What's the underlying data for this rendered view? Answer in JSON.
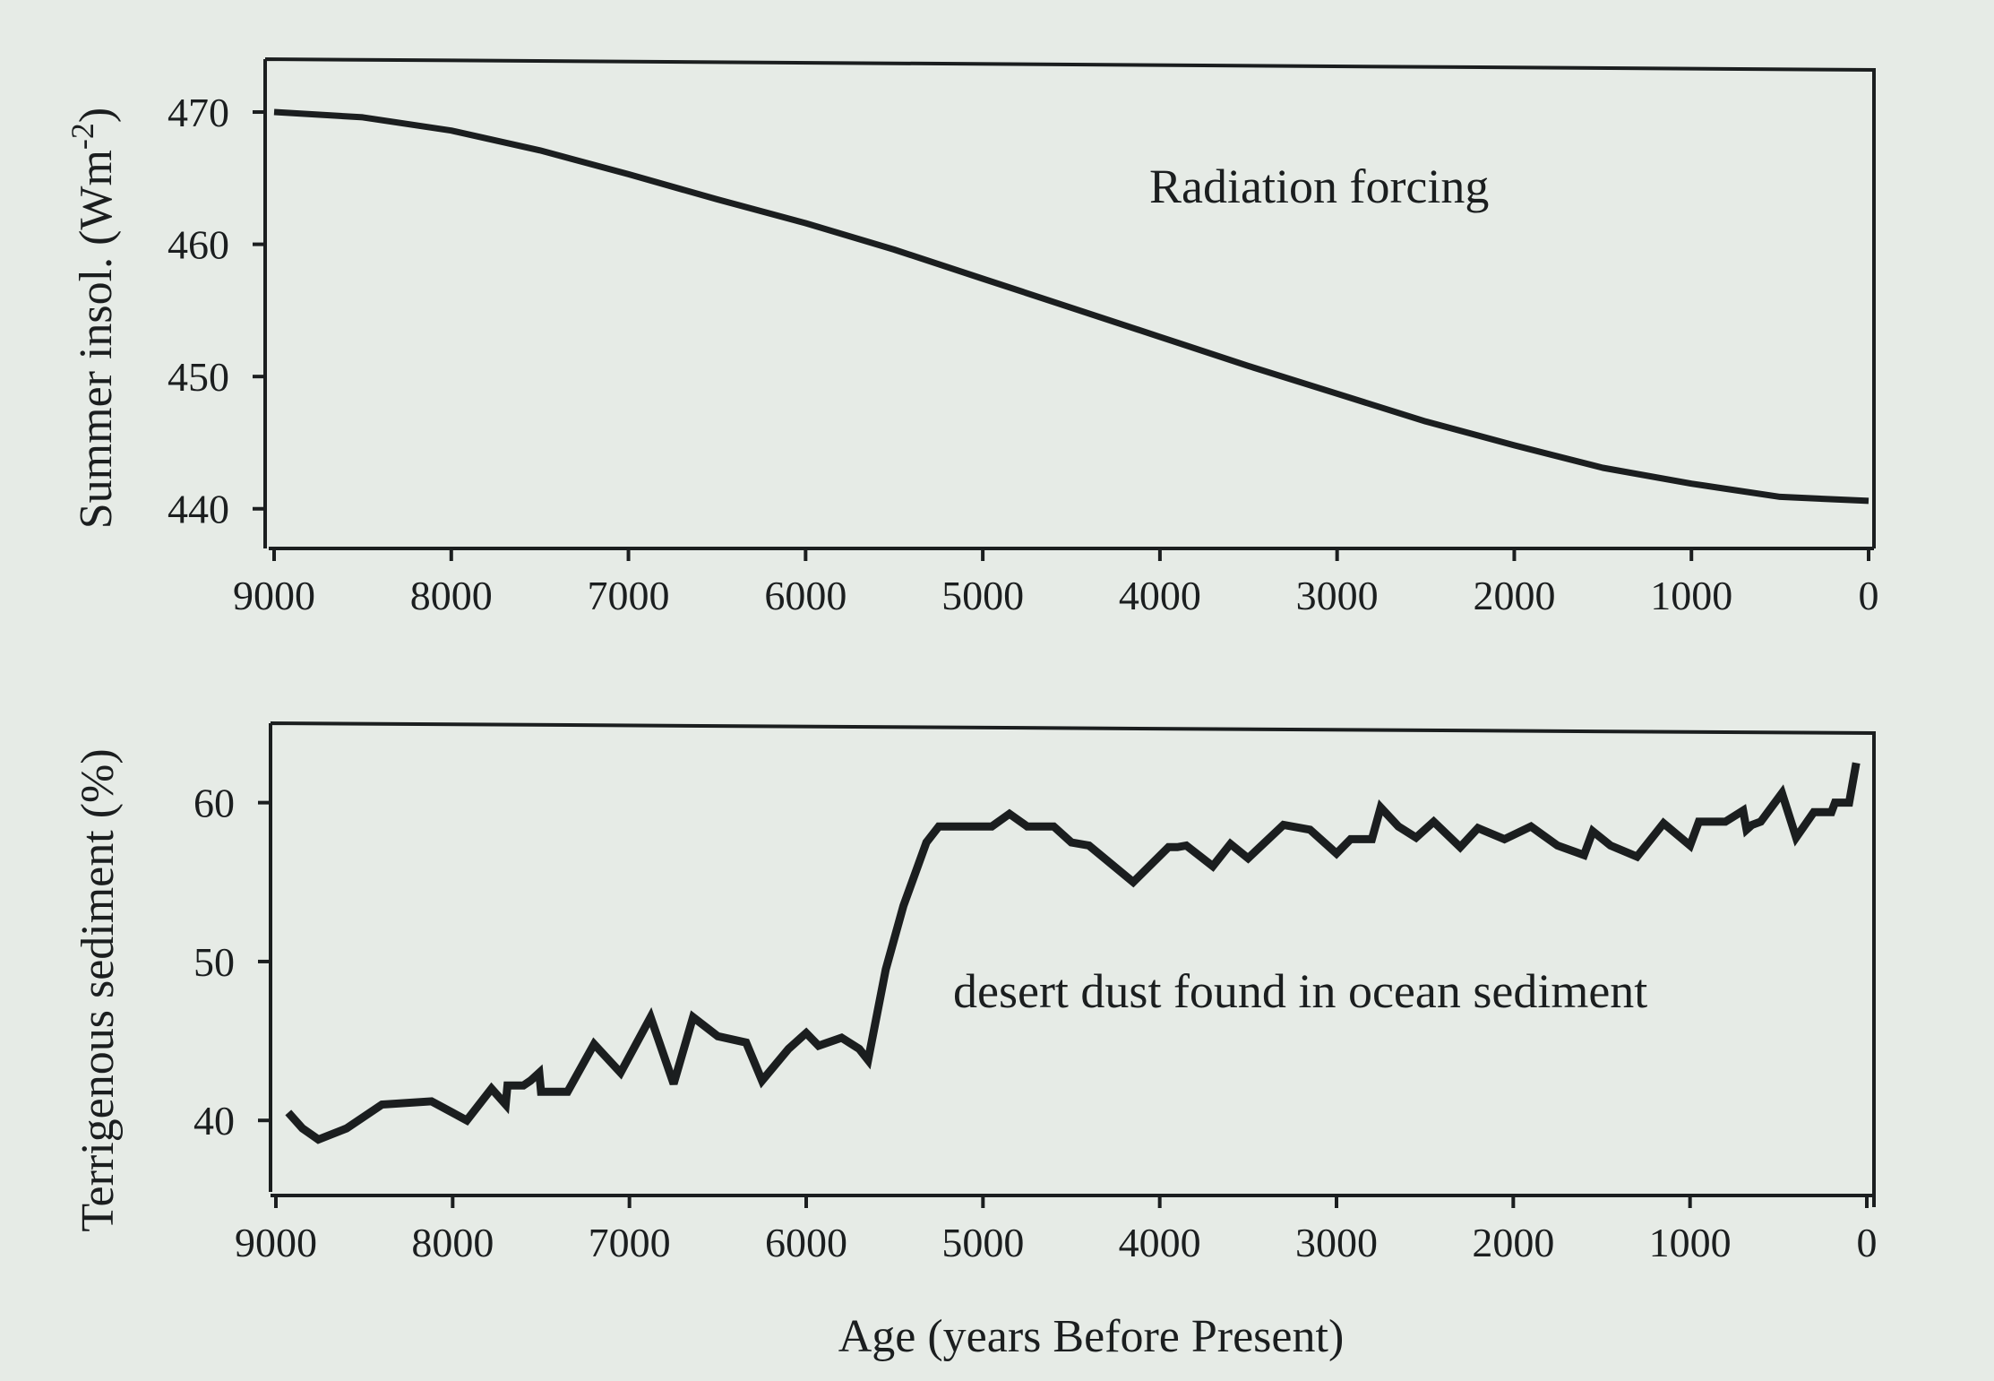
{
  "chart_data": [
    {
      "type": "line",
      "ylabel_text": "Summer insol. (Wm",
      "ylabel_exponent": "-2",
      "ylabel_close": ")",
      "annotation": "Radiation forcing",
      "x_ticks": [
        "9000",
        "8000",
        "7000",
        "6000",
        "5000",
        "4000",
        "3000",
        "2000",
        "1000",
        "0"
      ],
      "y_ticks": [
        "470",
        "460",
        "450",
        "440"
      ],
      "xlim": [
        9000,
        0
      ],
      "ylim": [
        437,
        474
      ],
      "series": [
        {
          "x": [
            9000,
            8500,
            8000,
            7500,
            7000,
            6500,
            6000,
            5500,
            5000,
            4500,
            4000,
            3500,
            3000,
            2500,
            2000,
            1500,
            1000,
            500,
            0
          ],
          "y": [
            470,
            469.6,
            468.6,
            467.1,
            465.3,
            463.4,
            461.6,
            459.6,
            457.4,
            455.2,
            453,
            450.8,
            448.7,
            446.6,
            444.8,
            443.1,
            441.9,
            440.9,
            440.6
          ]
        }
      ]
    },
    {
      "type": "line",
      "ylabel": "Terrigenous sediment (%)",
      "xlabel": "Age (years Before Present)",
      "annotation": "desert dust found in ocean sediment",
      "x_ticks": [
        "9000",
        "8000",
        "7000",
        "6000",
        "5000",
        "4000",
        "3000",
        "2000",
        "1000",
        "0"
      ],
      "y_ticks": [
        "60",
        "50",
        "40"
      ],
      "xlim": [
        9000,
        0
      ],
      "ylim": [
        35.5,
        65
      ],
      "series": [
        {
          "x": [
            8930,
            8850,
            8760,
            8600,
            8400,
            8120,
            7920,
            7780,
            7700,
            7690,
            7600,
            7560,
            7510,
            7500,
            7350,
            7200,
            7050,
            6880,
            6750,
            6640,
            6500,
            6340,
            6250,
            6100,
            6000,
            5930,
            5800,
            5700,
            5650,
            5550,
            5450,
            5320,
            5250,
            5150,
            4950,
            4850,
            4750,
            4600,
            4500,
            4400,
            4150,
            3950,
            3900,
            3850,
            3700,
            3600,
            3500,
            3300,
            3150,
            3000,
            2920,
            2800,
            2750,
            2650,
            2550,
            2450,
            2300,
            2200,
            2050,
            1900,
            1850,
            1750,
            1600,
            1550,
            1450,
            1300,
            1150,
            1000,
            950,
            800,
            700,
            680,
            650,
            600,
            480,
            400,
            300,
            250,
            200,
            180,
            150,
            100,
            60
          ],
          "y": [
            40.5,
            39.5,
            38.8,
            39.5,
            41,
            41.2,
            40,
            42,
            41,
            42.2,
            42.2,
            42.5,
            43,
            41.8,
            41.8,
            44.8,
            43,
            46.5,
            42.3,
            46.5,
            45.3,
            44.9,
            42.5,
            44.5,
            45.5,
            44.7,
            45.2,
            44.5,
            43.8,
            49.5,
            53.5,
            57.5,
            58.5,
            58.5,
            58.5,
            59.3,
            58.5,
            58.5,
            57.5,
            57.3,
            55,
            57.2,
            57.2,
            57.3,
            56,
            57.4,
            56.5,
            58.6,
            58.3,
            56.8,
            57.7,
            57.7,
            59.7,
            58.5,
            57.8,
            58.8,
            57.2,
            58.4,
            57.7,
            58.5,
            58.1,
            57.3,
            56.7,
            58.2,
            57.3,
            56.6,
            58.7,
            57.3,
            58.8,
            58.8,
            59.5,
            58.3,
            58.6,
            58.8,
            60.6,
            57.8,
            59.4,
            59.4,
            59.4,
            60,
            60,
            60,
            62.5
          ]
        }
      ]
    }
  ]
}
